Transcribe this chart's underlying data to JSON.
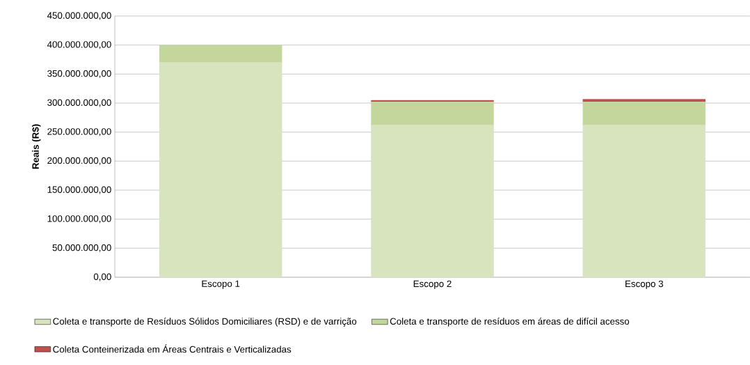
{
  "chart_data": {
    "type": "bar",
    "stacked": true,
    "ylabel": "Reais (R$)",
    "categories": [
      "Escopo 1",
      "Escopo 2",
      "Escopo 3"
    ],
    "series": [
      {
        "name": "Coleta e transporte de Resíduos Sólidos Domiciliares (RSD) e de varrição",
        "color": "#d7e4bd",
        "values": [
          370000000,
          262000000,
          262000000
        ]
      },
      {
        "name": "Coleta e transporte de resíduos em áreas de difícil acesso",
        "color": "#c3d69b",
        "values": [
          30000000,
          40000000,
          40000000
        ]
      },
      {
        "name": "Coleta Conteinerizada em Áreas Centrais e Verticalizadas",
        "color": "#c0504d",
        "values": [
          0,
          3000000,
          5000000
        ]
      }
    ],
    "ylim": [
      0,
      450000000
    ],
    "yticks": [
      {
        "value": 0,
        "label": "0,00"
      },
      {
        "value": 50000000,
        "label": "50.000.000,00"
      },
      {
        "value": 100000000,
        "label": "100.000.000,00"
      },
      {
        "value": 150000000,
        "label": "150.000.000,00"
      },
      {
        "value": 200000000,
        "label": "200.000.000,00"
      },
      {
        "value": 250000000,
        "label": "250.000.000,00"
      },
      {
        "value": 300000000,
        "label": "300.000.000,00"
      },
      {
        "value": 350000000,
        "label": "350.000.000,00"
      },
      {
        "value": 400000000,
        "label": "400.000.000,00"
      },
      {
        "value": 450000000,
        "label": "450.000.000,00"
      }
    ],
    "grid": "y",
    "legend": "bottom"
  }
}
